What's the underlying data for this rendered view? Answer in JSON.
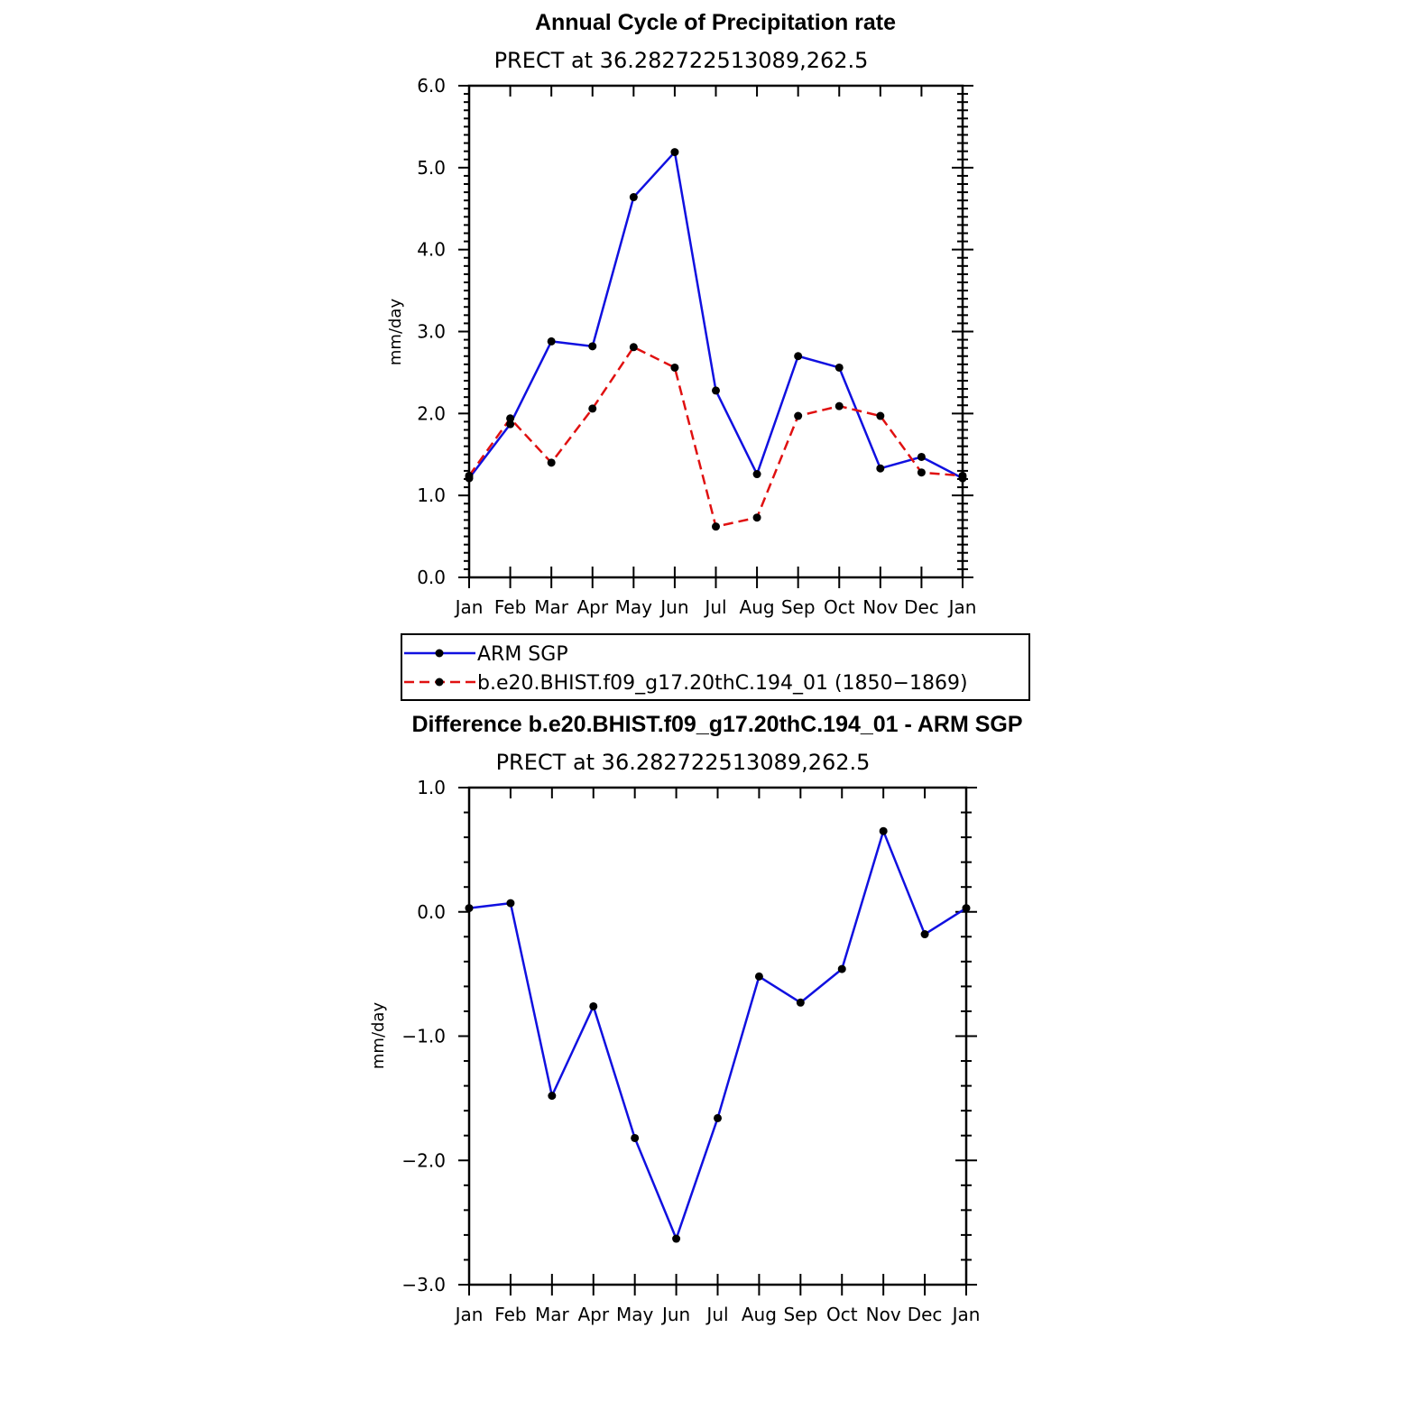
{
  "chart_data": [
    {
      "type": "line",
      "title": "Annual Cycle of Precipitation rate",
      "subtitle": "PRECT at 36.282722513089,262.5",
      "ylabel": "mm/day",
      "xlabel": "",
      "categories": [
        "Jan",
        "Feb",
        "Mar",
        "Apr",
        "May",
        "Jun",
        "Jul",
        "Aug",
        "Sep",
        "Oct",
        "Nov",
        "Dec",
        "Jan"
      ],
      "ylim": [
        0,
        6
      ],
      "yticks": [
        0,
        1,
        2,
        3,
        4,
        5,
        6
      ],
      "ytick_labels": [
        "0.0",
        "1.0",
        "2.0",
        "3.0",
        "4.0",
        "5.0",
        "6.0"
      ],
      "grid": false,
      "series": [
        {
          "name": "ARM SGP",
          "color": "#1010e0",
          "dash": "solid",
          "values": [
            1.21,
            1.87,
            2.88,
            2.82,
            4.64,
            5.19,
            2.28,
            1.26,
            2.7,
            2.56,
            1.33,
            1.47,
            1.21
          ]
        },
        {
          "name": "b.e20.BHIST.f09_g17.20thC.194_01 (1850−1869)",
          "color": "#e01010",
          "dash": "dashed",
          "values": [
            1.24,
            1.94,
            1.4,
            2.06,
            2.81,
            2.56,
            0.62,
            0.73,
            1.97,
            2.09,
            1.97,
            1.28,
            1.24
          ]
        }
      ],
      "legend": "below"
    },
    {
      "type": "line",
      "title": "Difference b.e20.BHIST.f09_g17.20thC.194_01 - ARM SGP",
      "subtitle": "PRECT at 36.282722513089,262.5",
      "ylabel": "mm/day",
      "xlabel": "",
      "categories": [
        "Jan",
        "Feb",
        "Mar",
        "Apr",
        "May",
        "Jun",
        "Jul",
        "Aug",
        "Sep",
        "Oct",
        "Nov",
        "Dec",
        "Jan"
      ],
      "ylim": [
        -3,
        1
      ],
      "yticks": [
        -3,
        -2,
        -1,
        0,
        1
      ],
      "ytick_labels": [
        "−3.0",
        "−2.0",
        "−1.0",
        "0.0",
        "1.0"
      ],
      "grid": false,
      "series": [
        {
          "color": "#1010e0",
          "dash": "solid",
          "values": [
            0.03,
            0.07,
            -1.48,
            -0.76,
            -1.82,
            -2.63,
            -1.66,
            -0.52,
            -0.73,
            -0.46,
            0.65,
            -0.18,
            0.03
          ]
        }
      ]
    }
  ]
}
